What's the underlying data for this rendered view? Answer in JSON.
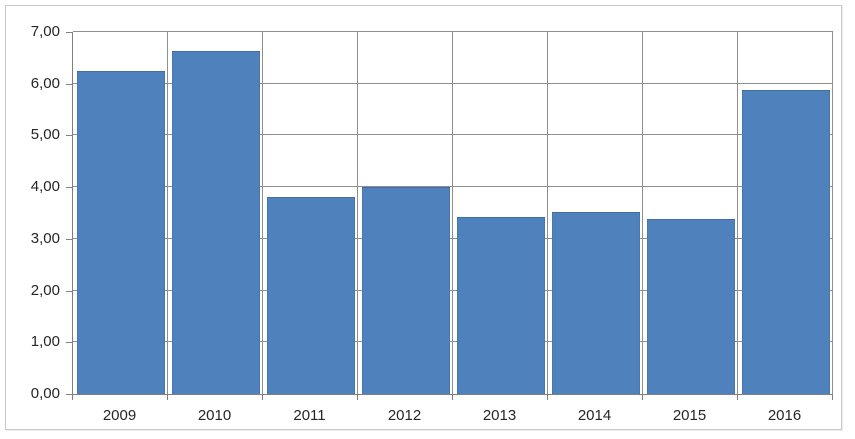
{
  "chart_data": {
    "type": "bar",
    "title": "",
    "xlabel": "",
    "ylabel": "",
    "categories": [
      "2009",
      "2010",
      "2011",
      "2012",
      "2013",
      "2014",
      "2015",
      "2016"
    ],
    "values": [
      6.24,
      6.63,
      3.81,
      4.01,
      3.43,
      3.51,
      3.39,
      5.87
    ],
    "ylim": [
      0,
      7
    ],
    "ytick_step": 1,
    "ytick_labels": [
      "0,00",
      "1,00",
      "2,00",
      "3,00",
      "4,00",
      "5,00",
      "6,00",
      "7,00"
    ],
    "decimal_separator": ",",
    "grid": "both-major",
    "legend": "none",
    "colors": {
      "bar_fill": "#4F81BD",
      "gridline": "#8f8f8f",
      "axis_line": "#7f7f7f",
      "tick_text": "#262626",
      "chart_border": "#c9c9c9",
      "background": "#ffffff"
    }
  }
}
